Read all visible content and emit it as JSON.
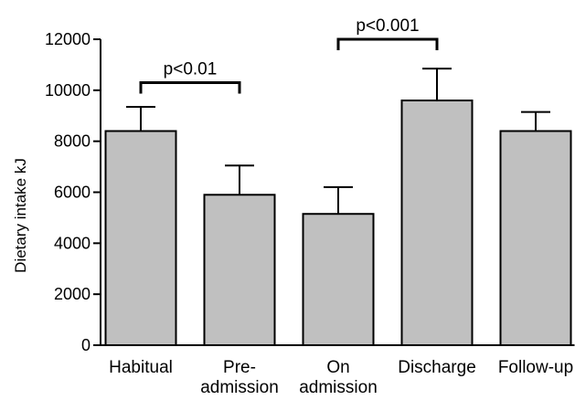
{
  "chart_data": {
    "type": "bar",
    "categories": [
      "Habitual",
      "Pre-\nadmission",
      "On\nadmission",
      "Discharge",
      "Follow-up"
    ],
    "values": [
      8400,
      5900,
      5150,
      9600,
      8400
    ],
    "errors": [
      950,
      1150,
      1050,
      1250,
      750
    ],
    "ylabel": "Dietary intake kJ",
    "ylim": [
      0,
      12000
    ],
    "yticks": [
      0,
      2000,
      4000,
      6000,
      8000,
      10000,
      12000
    ],
    "bar_color": "#c0c0c0",
    "grid": false,
    "annotations": [
      {
        "text": "p<0.01",
        "from": 0,
        "to": 1,
        "y": 10300
      },
      {
        "text": "p<0.001",
        "from": 2,
        "to": 3,
        "y": 12000
      }
    ]
  }
}
